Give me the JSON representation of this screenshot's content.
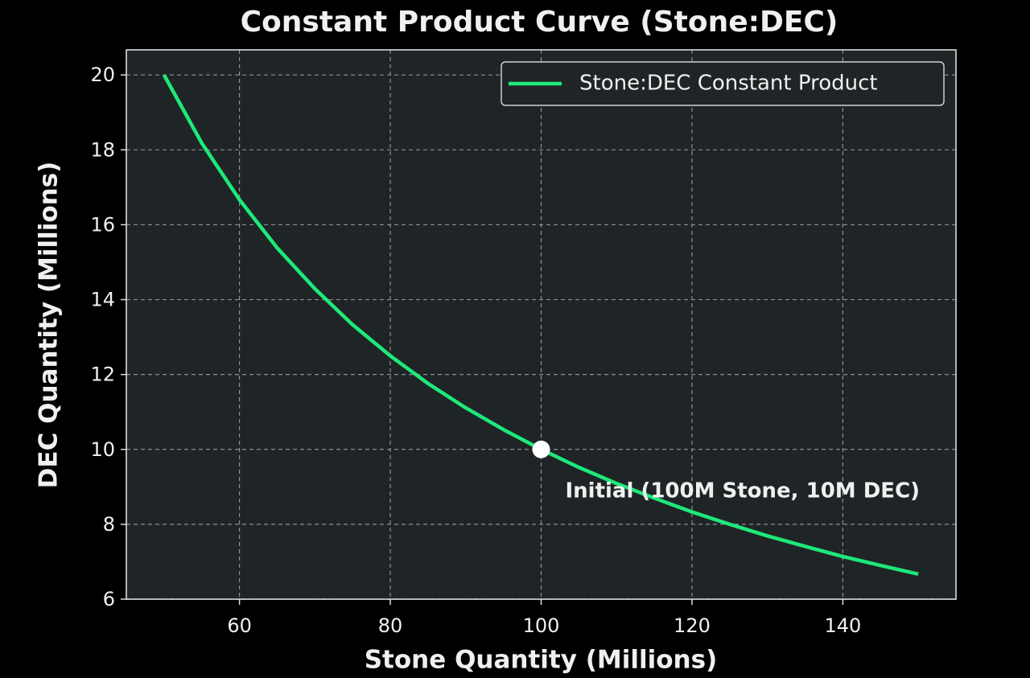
{
  "chart_data": {
    "type": "line",
    "title": "Constant Product Curve (Stone:DEC)",
    "x_label": "Stone Quantity (Millions)",
    "y_label": "DEC Quantity (Millions)",
    "x": [
      50,
      55,
      60,
      65,
      70,
      75,
      80,
      85,
      90,
      95,
      100,
      105,
      110,
      115,
      120,
      125,
      130,
      135,
      140,
      145,
      150
    ],
    "series": [
      {
        "name": "Stone:DEC Constant Product",
        "color": "#1de97a",
        "values": [
          20,
          18.18,
          16.67,
          15.38,
          14.29,
          13.33,
          12.5,
          11.76,
          11.11,
          10.53,
          10,
          9.52,
          9.09,
          8.7,
          8.33,
          8,
          7.69,
          7.41,
          7.14,
          6.9,
          6.67
        ]
      }
    ],
    "marker": {
      "x": 100,
      "y": 10,
      "color": "#ffffff",
      "label": "Initial (100M Stone, 10M DEC)"
    },
    "xlim": [
      45,
      155
    ],
    "ylim": [
      6,
      20.67
    ],
    "xticks": [
      60,
      80,
      100,
      120,
      140
    ],
    "yticks": [
      6,
      8,
      10,
      12,
      14,
      16,
      18,
      20
    ],
    "grid": true,
    "legend": "upper right"
  }
}
